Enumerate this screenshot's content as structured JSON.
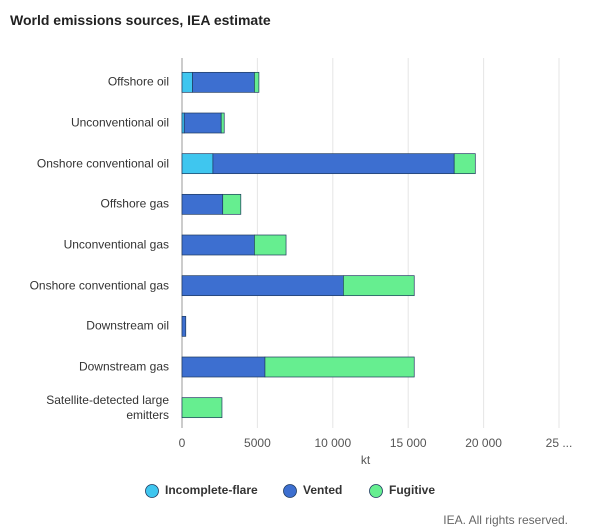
{
  "chart_data": {
    "type": "bar",
    "orientation": "horizontal",
    "stacked": true,
    "title": "World emissions sources, IEA estimate",
    "categories": [
      "Offshore oil",
      "Unconventional oil",
      "Onshore conventional oil",
      "Offshore gas",
      "Unconventional gas",
      "Onshore conventional gas",
      "Downstream oil",
      "Downstream gas",
      "Satellite-detected large emitters"
    ],
    "series": [
      {
        "name": "Incomplete-flare",
        "color": "#3fc6ef",
        "values": [
          700,
          150,
          2050,
          null,
          null,
          null,
          null,
          null,
          null
        ]
      },
      {
        "name": "Vented",
        "color": "#3d6fd0",
        "values": [
          4100,
          2450,
          16000,
          2700,
          4800,
          10700,
          250,
          5500,
          null
        ]
      },
      {
        "name": "Fugitive",
        "color": "#66ee90",
        "values": [
          300,
          200,
          1400,
          1200,
          2100,
          4700,
          null,
          9900,
          2650
        ]
      }
    ],
    "xlabel": "kt",
    "xlim": [
      0,
      25000
    ],
    "xticks": [
      0,
      5000,
      {
        "value": 10000,
        "label": "10 000"
      },
      {
        "value": 15000,
        "label": "15 000"
      },
      {
        "value": 20000,
        "label": "20 000"
      },
      {
        "value": 25000,
        "label": "25 ..."
      }
    ],
    "grid": true,
    "legend": "bottom"
  },
  "footer": "IEA. All rights reserved."
}
